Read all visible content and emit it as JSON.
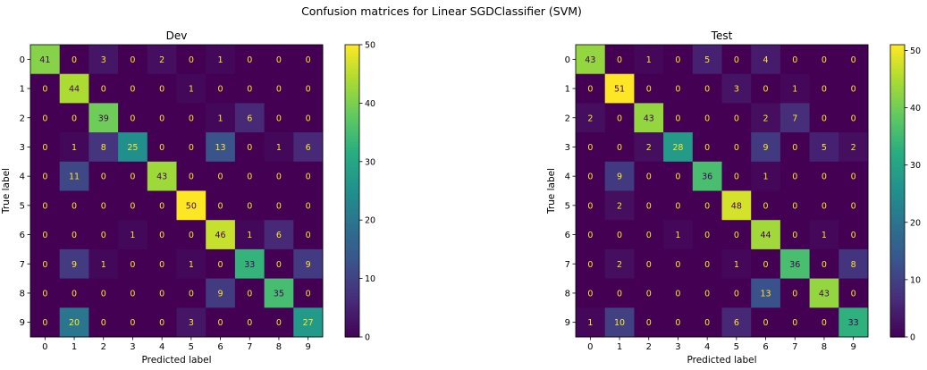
{
  "suptitle": "Confusion matrices for Linear SGDClassifier (SVM)",
  "colormap": "viridis",
  "chart_data": [
    {
      "type": "heatmap",
      "title": "Dev",
      "xlabel": "Predicted label",
      "ylabel": "True label",
      "x_ticks": [
        "0",
        "1",
        "2",
        "3",
        "4",
        "5",
        "6",
        "7",
        "8",
        "9"
      ],
      "y_ticks": [
        "0",
        "1",
        "2",
        "3",
        "4",
        "5",
        "6",
        "7",
        "8",
        "9"
      ],
      "matrix": [
        [
          41,
          0,
          3,
          0,
          2,
          0,
          1,
          0,
          0,
          0
        ],
        [
          0,
          44,
          0,
          0,
          0,
          1,
          0,
          0,
          0,
          0
        ],
        [
          0,
          0,
          39,
          0,
          0,
          0,
          1,
          6,
          0,
          0
        ],
        [
          0,
          1,
          8,
          25,
          0,
          0,
          13,
          0,
          1,
          6
        ],
        [
          0,
          11,
          0,
          0,
          43,
          0,
          0,
          0,
          0,
          0
        ],
        [
          0,
          0,
          0,
          0,
          0,
          50,
          0,
          0,
          0,
          0
        ],
        [
          0,
          0,
          0,
          1,
          0,
          0,
          46,
          1,
          6,
          0
        ],
        [
          0,
          9,
          1,
          0,
          0,
          1,
          0,
          33,
          0,
          9
        ],
        [
          0,
          0,
          0,
          0,
          0,
          0,
          9,
          0,
          35,
          0
        ],
        [
          0,
          20,
          0,
          0,
          0,
          3,
          0,
          0,
          0,
          27
        ]
      ],
      "color_range": [
        0,
        50
      ],
      "colorbar_ticks": [
        0,
        10,
        20,
        30,
        40,
        50
      ]
    },
    {
      "type": "heatmap",
      "title": "Test",
      "xlabel": "Predicted label",
      "ylabel": "True label",
      "x_ticks": [
        "0",
        "1",
        "2",
        "3",
        "4",
        "5",
        "6",
        "7",
        "8",
        "9"
      ],
      "y_ticks": [
        "0",
        "1",
        "2",
        "3",
        "4",
        "5",
        "6",
        "7",
        "8",
        "9"
      ],
      "matrix": [
        [
          43,
          0,
          1,
          0,
          5,
          0,
          4,
          0,
          0,
          0
        ],
        [
          0,
          51,
          0,
          0,
          0,
          3,
          0,
          1,
          0,
          0
        ],
        [
          2,
          0,
          43,
          0,
          0,
          0,
          2,
          7,
          0,
          0
        ],
        [
          0,
          0,
          2,
          28,
          0,
          0,
          9,
          0,
          5,
          2
        ],
        [
          0,
          9,
          0,
          0,
          36,
          0,
          1,
          0,
          0,
          0
        ],
        [
          0,
          2,
          0,
          0,
          0,
          48,
          0,
          0,
          0,
          0
        ],
        [
          0,
          0,
          0,
          1,
          0,
          0,
          44,
          0,
          1,
          0
        ],
        [
          0,
          2,
          0,
          0,
          0,
          1,
          0,
          36,
          0,
          8
        ],
        [
          0,
          0,
          0,
          0,
          0,
          0,
          13,
          0,
          43,
          0
        ],
        [
          1,
          10,
          0,
          0,
          0,
          6,
          0,
          0,
          0,
          33
        ]
      ],
      "color_range": [
        0,
        51
      ],
      "colorbar_ticks": [
        0,
        10,
        20,
        30,
        40,
        50
      ]
    }
  ]
}
